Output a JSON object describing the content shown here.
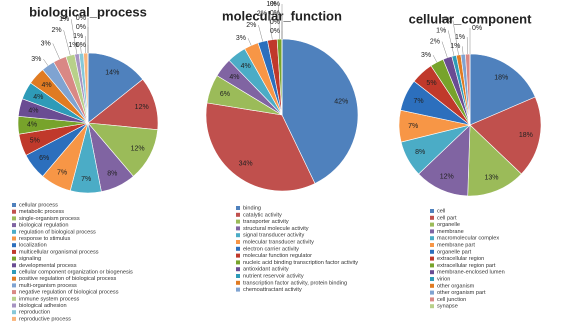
{
  "chart_data": [
    {
      "type": "pie",
      "title": "biological_process",
      "categories": [
        "cellular process",
        "metabolic process",
        "single-organism process",
        "biological regulation",
        "regulation of biological process",
        "response to stimulus",
        "localization",
        "multicellular organismal process",
        "signaling",
        "developmental process",
        "cellular component organization or biogenesis",
        "positive regulation of biological process",
        "multi-organism process",
        "negative regulation of biological process",
        "immune system process",
        "biological adhesion",
        "reproduction",
        "reproductive process",
        null,
        null,
        null
      ],
      "values": [
        14,
        12,
        12,
        8,
        7,
        7,
        6,
        5,
        4,
        4,
        4,
        4,
        3,
        3,
        2,
        1,
        1,
        1,
        0,
        0,
        0
      ],
      "value_labels": [
        "14%",
        "12%",
        "12%",
        "8%",
        "7%",
        "7%",
        "6%",
        "5%",
        "4%",
        "4%",
        "4%",
        "4%",
        "3%",
        "3%",
        "2%",
        "1%",
        "1%",
        "1%",
        "0%",
        "0%",
        "0%"
      ],
      "colors": [
        "#4f81bd",
        "#c0504d",
        "#9bbb59",
        "#8064a2",
        "#4bacc6",
        "#f79646",
        "#2c6fbd",
        "#c0392b",
        "#77a32b",
        "#6a4c93",
        "#2e9bb8",
        "#e07b22",
        "#7fa3d1",
        "#d98885",
        "#b8d08a",
        "#a794c2",
        "#86c8d8",
        "#f9b47a",
        "#34558a",
        "#8b3a37",
        "#6e8a3d"
      ]
    },
    {
      "type": "pie",
      "title": "molecular_function",
      "categories": [
        "binding",
        "catalytic activity",
        "transporter activity",
        "structural molecule activity",
        "signal transducer activity",
        "molecular transducer activity",
        "electron carrier activity",
        "molecular function regulator",
        "nucleic acid binding transcription factor activity",
        "antioxidant activity",
        "nutrient reservoir activity",
        "transcription factor activity, protein binding",
        "chemoattractant activity"
      ],
      "values": [
        42,
        34,
        6,
        4,
        4,
        3,
        2,
        2,
        1,
        0,
        0,
        0,
        0
      ],
      "value_labels": [
        "42%",
        "34%",
        "6%",
        "4%",
        "4%",
        "3%",
        "2%",
        "2%",
        "1%",
        "0%",
        "0%",
        "0%",
        "0%"
      ],
      "colors": [
        "#4f81bd",
        "#c0504d",
        "#9bbb59",
        "#8064a2",
        "#4bacc6",
        "#f79646",
        "#2c6fbd",
        "#c0392b",
        "#77a32b",
        "#6a4c93",
        "#2e9bb8",
        "#e07b22",
        "#7fa3d1"
      ]
    },
    {
      "type": "pie",
      "title": "cellular_component",
      "categories": [
        "cell",
        "cell part",
        "organelle",
        "membrane",
        "macromolecular complex",
        "membrane part",
        "organelle part",
        "extracellular region",
        "extracellular region part",
        "membrane-enclosed lumen",
        "virion",
        "other organism",
        "other organism part",
        "cell junction",
        "synapse"
      ],
      "values": [
        18,
        18,
        13,
        12,
        8,
        7,
        7,
        5,
        3,
        2,
        1,
        1,
        1,
        1,
        0
      ],
      "value_labels": [
        "18%",
        "18%",
        "13%",
        "12%",
        "8%",
        "7%",
        "7%",
        "5%",
        "3%",
        "2%",
        "1%",
        "1%",
        "1%",
        "1%",
        "0%"
      ],
      "colors": [
        "#4f81bd",
        "#c0504d",
        "#9bbb59",
        "#8064a2",
        "#4bacc6",
        "#f79646",
        "#2c6fbd",
        "#c0392b",
        "#77a32b",
        "#6a4c93",
        "#2e9bb8",
        "#e07b22",
        "#7fa3d1",
        "#d98885",
        "#b8d08a"
      ]
    }
  ]
}
